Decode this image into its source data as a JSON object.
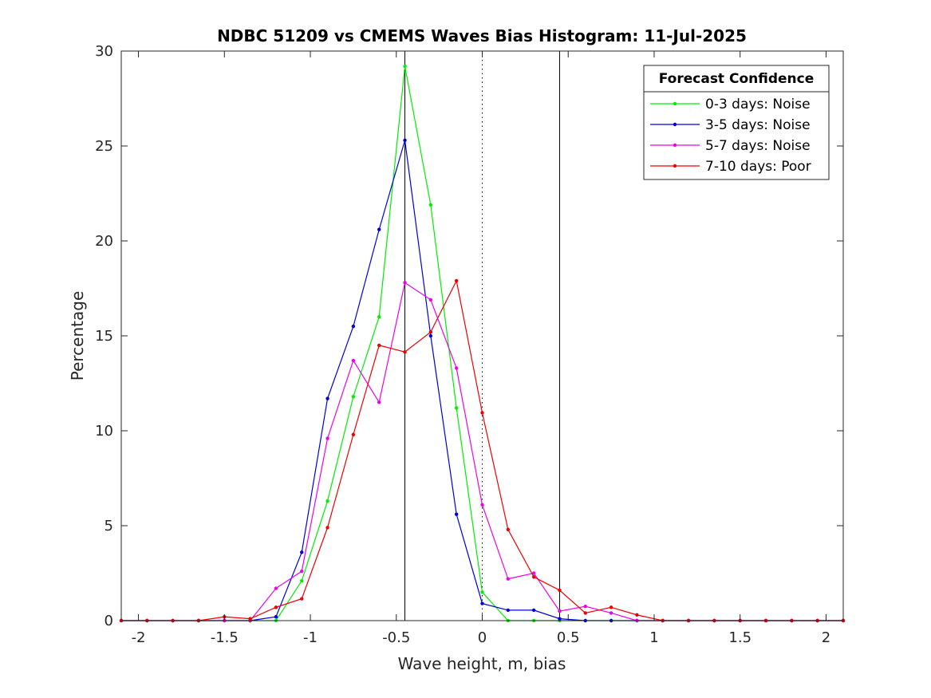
{
  "chart_data": {
    "type": "line",
    "title": "NDBC 51209 vs CMEMS Waves Bias Histogram: 11-Jul-2025",
    "xlabel": "Wave height, m, bias",
    "ylabel": "Percentage",
    "xlim": [
      -2.1,
      2.1
    ],
    "ylim": [
      0,
      30
    ],
    "xticks": [
      -2,
      -1.5,
      -1,
      -0.5,
      0,
      0.5,
      1,
      1.5,
      2
    ],
    "xtick_labels": [
      "-2",
      "-1.5",
      "-1",
      "-0.5",
      "0",
      "0.5",
      "1",
      "1.5",
      "2"
    ],
    "yticks": [
      0,
      5,
      10,
      15,
      20,
      25,
      30
    ],
    "ytick_labels": [
      "0",
      "5",
      "10",
      "15",
      "20",
      "25",
      "30"
    ],
    "grid": false,
    "vertical_lines": [
      {
        "x": -0.45,
        "style": "solid"
      },
      {
        "x": 0,
        "style": "dotted"
      },
      {
        "x": 0.45,
        "style": "solid"
      }
    ],
    "legend": {
      "title": "Forecast Confidence",
      "position": "top-right"
    },
    "x": [
      -2.1,
      -1.95,
      -1.8,
      -1.65,
      -1.5,
      -1.35,
      -1.2,
      -1.05,
      -0.9,
      -0.75,
      -0.6,
      -0.45,
      -0.3,
      -0.15,
      0,
      0.15,
      0.3,
      0.45,
      0.6,
      0.75,
      0.9,
      1.05,
      1.2,
      1.35,
      1.5,
      1.65,
      1.8,
      1.95,
      2.1
    ],
    "series": [
      {
        "name": "0-3 days: Noise",
        "color": "#00ee00",
        "values": [
          0,
          0,
          0,
          0,
          0,
          0,
          0,
          2.1,
          6.3,
          11.8,
          16.0,
          29.2,
          21.9,
          11.2,
          1.5,
          0,
          0,
          0,
          0,
          0,
          0,
          0,
          0,
          0,
          0,
          0,
          0,
          0,
          0
        ]
      },
      {
        "name": "3-5 days: Noise",
        "color": "#0000dd",
        "values": [
          0,
          0,
          0,
          0,
          0,
          0,
          0.2,
          3.6,
          11.7,
          15.5,
          20.6,
          25.3,
          15.0,
          5.6,
          0.9,
          0.55,
          0.55,
          0.1,
          0,
          0,
          0,
          0,
          0,
          0,
          0,
          0,
          0,
          0,
          0
        ]
      },
      {
        "name": "5-7 days: Noise",
        "color": "#ee00ee",
        "values": [
          0,
          0,
          0,
          0,
          0,
          0,
          1.7,
          2.6,
          9.6,
          13.7,
          11.5,
          17.8,
          16.9,
          13.3,
          6.1,
          2.2,
          2.5,
          0.5,
          0.75,
          0.4,
          0,
          0,
          0,
          0,
          0,
          0,
          0,
          0,
          0
        ]
      },
      {
        "name": "7-10 days: Poor",
        "color": "#ee0000",
        "values": [
          0,
          0,
          0,
          0,
          0.2,
          0.1,
          0.7,
          1.15,
          4.9,
          9.8,
          14.5,
          14.15,
          15.2,
          17.9,
          10.95,
          4.8,
          2.3,
          1.6,
          0.4,
          0.7,
          0.3,
          0,
          0,
          0,
          0,
          0,
          0,
          0,
          0
        ]
      }
    ]
  }
}
